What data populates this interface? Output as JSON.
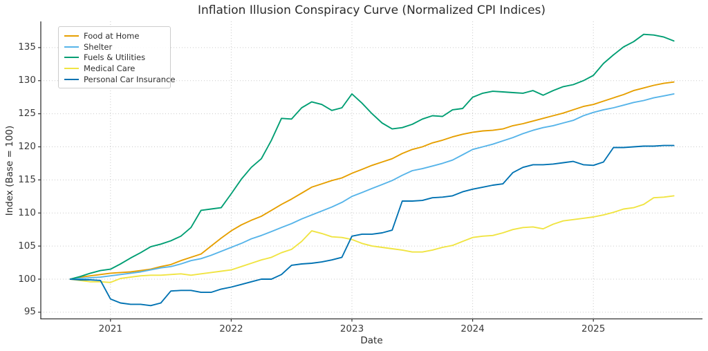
{
  "title": "Inflation Illusion Conspiracy Curve (Normalized CPI Indices)",
  "chart_data": {
    "type": "line",
    "title": "Inflation Illusion Conspiracy Curve (Normalized CPI Indices)",
    "xlabel": "Date",
    "ylabel": "Index (Base = 100)",
    "x_start": "2020-09",
    "x_end": "2025-09",
    "x_frequency": "monthly",
    "x_tick_labels": [
      "2021",
      "2022",
      "2023",
      "2024",
      "2025"
    ],
    "x_tick_month_indices": [
      4,
      16,
      28,
      40,
      52
    ],
    "y_ticks": [
      95,
      100,
      105,
      110,
      115,
      120,
      125,
      130,
      135
    ],
    "ylim": [
      93.9,
      139.1
    ],
    "grid": "dotted",
    "legend_position": "upper-left",
    "series": [
      {
        "name": "Food at Home",
        "color": "#E69F00",
        "values": [
          100.0,
          100.3,
          100.5,
          100.7,
          100.9,
          101.0,
          101.1,
          101.3,
          101.5,
          101.9,
          102.2,
          102.8,
          103.3,
          103.8,
          105.0,
          106.2,
          107.3,
          108.2,
          108.9,
          109.5,
          110.4,
          111.3,
          112.1,
          113.0,
          113.9,
          114.4,
          114.9,
          115.3,
          116.0,
          116.6,
          117.2,
          117.7,
          118.2,
          119.0,
          119.6,
          120.0,
          120.6,
          121.0,
          121.5,
          121.9,
          122.2,
          122.4,
          122.5,
          122.7,
          123.2,
          123.5,
          123.9,
          124.3,
          124.7,
          125.1,
          125.6,
          126.1,
          126.4,
          126.9,
          127.4,
          127.9,
          128.5,
          128.9,
          129.3,
          129.6,
          129.8
        ]
      },
      {
        "name": "Shelter",
        "color": "#56B4E9",
        "values": [
          100.0,
          100.1,
          100.2,
          100.3,
          100.5,
          100.7,
          100.9,
          101.1,
          101.4,
          101.7,
          101.9,
          102.3,
          102.8,
          103.1,
          103.6,
          104.2,
          104.8,
          105.4,
          106.1,
          106.6,
          107.2,
          107.8,
          108.4,
          109.1,
          109.7,
          110.3,
          110.9,
          111.6,
          112.5,
          113.1,
          113.7,
          114.3,
          114.9,
          115.7,
          116.4,
          116.7,
          117.1,
          117.5,
          118.0,
          118.8,
          119.6,
          120.0,
          120.4,
          120.9,
          121.4,
          122.0,
          122.5,
          122.9,
          123.2,
          123.6,
          124.0,
          124.7,
          125.2,
          125.6,
          125.9,
          126.3,
          126.7,
          127.0,
          127.4,
          127.7,
          128.0
        ]
      },
      {
        "name": "Fuels & Utilities",
        "color": "#009E73",
        "values": [
          100.0,
          100.4,
          100.9,
          101.3,
          101.5,
          102.3,
          103.2,
          104.0,
          104.9,
          105.3,
          105.8,
          106.5,
          107.8,
          110.4,
          110.6,
          110.8,
          112.9,
          115.1,
          116.9,
          118.2,
          121.0,
          124.3,
          124.2,
          125.9,
          126.8,
          126.4,
          125.5,
          125.9,
          128.0,
          126.6,
          125.0,
          123.6,
          122.7,
          122.9,
          123.4,
          124.2,
          124.7,
          124.6,
          125.6,
          125.8,
          127.5,
          128.1,
          128.4,
          128.3,
          128.2,
          128.1,
          128.5,
          127.8,
          128.5,
          129.1,
          129.4,
          130.0,
          130.8,
          132.6,
          133.9,
          135.1,
          135.9,
          137.0,
          136.9,
          136.6,
          136.0
        ]
      },
      {
        "name": "Medical Care",
        "color": "#F0E442",
        "values": [
          100.0,
          99.8,
          99.6,
          99.6,
          99.5,
          100.1,
          100.3,
          100.5,
          100.6,
          100.6,
          100.7,
          100.8,
          100.6,
          100.8,
          101.0,
          101.2,
          101.4,
          101.9,
          102.4,
          102.9,
          103.3,
          104.0,
          104.5,
          105.7,
          107.3,
          106.9,
          106.4,
          106.3,
          106.0,
          105.4,
          105.0,
          104.8,
          104.6,
          104.4,
          104.1,
          104.1,
          104.4,
          104.8,
          105.1,
          105.7,
          106.3,
          106.5,
          106.6,
          107.0,
          107.5,
          107.8,
          107.9,
          107.6,
          108.3,
          108.8,
          109.0,
          109.2,
          109.4,
          109.7,
          110.1,
          110.6,
          110.8,
          111.3,
          112.3,
          112.4,
          112.6
        ]
      },
      {
        "name": "Personal Car Insurance",
        "color": "#0072B2",
        "values": [
          100.0,
          99.9,
          99.9,
          99.8,
          97.0,
          96.4,
          96.2,
          96.2,
          96.0,
          96.4,
          98.2,
          98.3,
          98.3,
          98.0,
          98.0,
          98.5,
          98.8,
          99.2,
          99.6,
          100.0,
          100.0,
          100.7,
          102.1,
          102.3,
          102.4,
          102.6,
          102.9,
          103.3,
          106.5,
          106.8,
          106.8,
          107.0,
          107.4,
          111.8,
          111.8,
          111.9,
          112.3,
          112.4,
          112.6,
          113.2,
          113.6,
          113.9,
          114.2,
          114.4,
          116.1,
          116.9,
          117.3,
          117.3,
          117.4,
          117.6,
          117.8,
          117.3,
          117.2,
          117.7,
          119.9,
          119.9,
          120.0,
          120.1,
          120.1,
          120.2,
          120.2
        ]
      }
    ],
    "style": {
      "grid_color": "#c9c9c9",
      "spine_color": "#333333",
      "line_width": 1.9
    }
  }
}
